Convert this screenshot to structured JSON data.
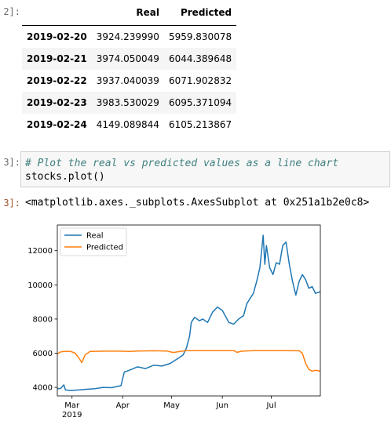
{
  "prompts": {
    "table_cell": "2]:",
    "code_in": "3]:",
    "code_out": "3]:"
  },
  "table": {
    "columns": [
      "",
      "Real",
      "Predicted"
    ],
    "rows": [
      {
        "date": "2019-02-20",
        "real": "3924.239990",
        "predicted": "5959.830078"
      },
      {
        "date": "2019-02-21",
        "real": "3974.050049",
        "predicted": "6044.389648"
      },
      {
        "date": "2019-02-22",
        "real": "3937.040039",
        "predicted": "6071.902832"
      },
      {
        "date": "2019-02-23",
        "real": "3983.530029",
        "predicted": "6095.371094"
      },
      {
        "date": "2019-02-24",
        "real": "4149.089844",
        "predicted": "6105.213867"
      }
    ]
  },
  "code": {
    "comment": "# Plot the real vs predicted values as a line chart",
    "line2": "stocks.plot()"
  },
  "output": {
    "repr": "<matplotlib.axes._subplots.AxesSubplot at 0x251a1b2e0c8>"
  },
  "chart_data": {
    "type": "line",
    "title": "",
    "xlabel": "",
    "ylabel": "",
    "legend": "top-left",
    "grid": false,
    "ylim": [
      3500,
      13500
    ],
    "xlim": [
      "2019-02-20",
      "2019-07-31"
    ],
    "x_ticks": [
      {
        "date": "2019-03-01",
        "label": "Mar",
        "sublabel": "2019"
      },
      {
        "date": "2019-04-01",
        "label": "Apr",
        "sublabel": ""
      },
      {
        "date": "2019-05-01",
        "label": "May",
        "sublabel": ""
      },
      {
        "date": "2019-06-01",
        "label": "Jun",
        "sublabel": ""
      },
      {
        "date": "2019-07-01",
        "label": "Jul",
        "sublabel": ""
      }
    ],
    "y_ticks": [
      4000,
      6000,
      8000,
      10000,
      12000
    ],
    "series": [
      {
        "name": "Real",
        "color": "#1f77b4",
        "points": [
          [
            "2019-02-20",
            3924
          ],
          [
            "2019-02-22",
            3937
          ],
          [
            "2019-02-24",
            4149
          ],
          [
            "2019-02-25",
            3850
          ],
          [
            "2019-02-28",
            3820
          ],
          [
            "2019-03-05",
            3850
          ],
          [
            "2019-03-10",
            3890
          ],
          [
            "2019-03-15",
            3920
          ],
          [
            "2019-03-20",
            4000
          ],
          [
            "2019-03-25",
            3980
          ],
          [
            "2019-03-31",
            4100
          ],
          [
            "2019-04-02",
            4900
          ],
          [
            "2019-04-05",
            5000
          ],
          [
            "2019-04-10",
            5200
          ],
          [
            "2019-04-15",
            5100
          ],
          [
            "2019-04-20",
            5300
          ],
          [
            "2019-04-25",
            5250
          ],
          [
            "2019-04-30",
            5400
          ],
          [
            "2019-05-05",
            5700
          ],
          [
            "2019-05-08",
            5900
          ],
          [
            "2019-05-10",
            6300
          ],
          [
            "2019-05-12",
            7000
          ],
          [
            "2019-05-13",
            7800
          ],
          [
            "2019-05-15",
            8100
          ],
          [
            "2019-05-18",
            7900
          ],
          [
            "2019-05-20",
            8000
          ],
          [
            "2019-05-23",
            7800
          ],
          [
            "2019-05-26",
            8400
          ],
          [
            "2019-05-29",
            8700
          ],
          [
            "2019-06-01",
            8500
          ],
          [
            "2019-06-05",
            7800
          ],
          [
            "2019-06-08",
            7700
          ],
          [
            "2019-06-11",
            8000
          ],
          [
            "2019-06-14",
            8200
          ],
          [
            "2019-06-16",
            8900
          ],
          [
            "2019-06-18",
            9200
          ],
          [
            "2019-06-20",
            9500
          ],
          [
            "2019-06-22",
            10200
          ],
          [
            "2019-06-24",
            11000
          ],
          [
            "2019-06-26",
            12900
          ],
          [
            "2019-06-27",
            11200
          ],
          [
            "2019-06-28",
            12300
          ],
          [
            "2019-06-30",
            11000
          ],
          [
            "2019-07-02",
            10600
          ],
          [
            "2019-07-04",
            11300
          ],
          [
            "2019-07-06",
            11200
          ],
          [
            "2019-07-08",
            12300
          ],
          [
            "2019-07-10",
            12500
          ],
          [
            "2019-07-12",
            11200
          ],
          [
            "2019-07-14",
            10200
          ],
          [
            "2019-07-16",
            9400
          ],
          [
            "2019-07-18",
            10200
          ],
          [
            "2019-07-20",
            10600
          ],
          [
            "2019-07-22",
            10300
          ],
          [
            "2019-07-24",
            9800
          ],
          [
            "2019-07-26",
            9900
          ],
          [
            "2019-07-28",
            9500
          ],
          [
            "2019-07-31",
            9600
          ]
        ]
      },
      {
        "name": "Predicted",
        "color": "#ff7f0e",
        "points": [
          [
            "2019-02-20",
            5960
          ],
          [
            "2019-02-22",
            6072
          ],
          [
            "2019-02-24",
            6105
          ],
          [
            "2019-02-28",
            6110
          ],
          [
            "2019-03-03",
            6000
          ],
          [
            "2019-03-05",
            5750
          ],
          [
            "2019-03-07",
            5450
          ],
          [
            "2019-03-09",
            5900
          ],
          [
            "2019-03-12",
            6100
          ],
          [
            "2019-03-20",
            6120
          ],
          [
            "2019-03-31",
            6120
          ],
          [
            "2019-04-05",
            6100
          ],
          [
            "2019-04-10",
            6130
          ],
          [
            "2019-04-20",
            6140
          ],
          [
            "2019-04-28",
            6130
          ],
          [
            "2019-05-02",
            6040
          ],
          [
            "2019-05-06",
            6100
          ],
          [
            "2019-05-10",
            6150
          ],
          [
            "2019-05-20",
            6150
          ],
          [
            "2019-06-01",
            6150
          ],
          [
            "2019-06-08",
            6150
          ],
          [
            "2019-06-10",
            6050
          ],
          [
            "2019-06-13",
            6120
          ],
          [
            "2019-06-20",
            6150
          ],
          [
            "2019-07-01",
            6150
          ],
          [
            "2019-07-10",
            6150
          ],
          [
            "2019-07-18",
            6140
          ],
          [
            "2019-07-20",
            6000
          ],
          [
            "2019-07-22",
            5400
          ],
          [
            "2019-07-24",
            5050
          ],
          [
            "2019-07-26",
            4950
          ],
          [
            "2019-07-28",
            5000
          ],
          [
            "2019-07-31",
            4950
          ]
        ]
      }
    ]
  }
}
